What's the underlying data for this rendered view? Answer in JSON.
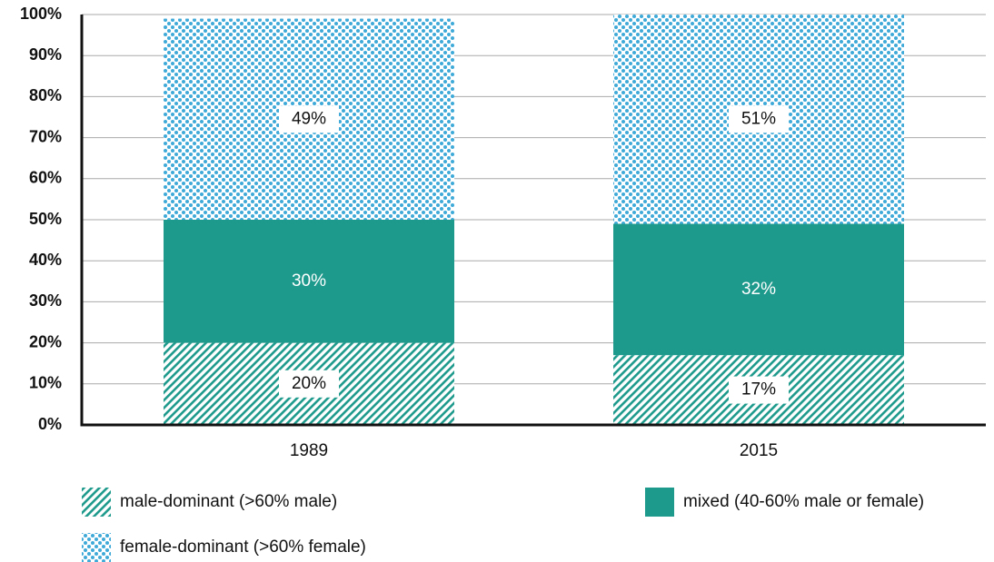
{
  "chart_data": {
    "type": "stacked_bar",
    "categories": [
      "1989",
      "2015"
    ],
    "series": [
      {
        "name": "male-dominant (>60% male)",
        "color": "#1e9a8c",
        "pattern": "hatch",
        "values": [
          20,
          17
        ],
        "value_labels": [
          "20%",
          "17%"
        ]
      },
      {
        "name": "mixed (40-60% male or female)",
        "color": "#1e9a8c",
        "pattern": "solid",
        "values": [
          30,
          32
        ],
        "value_labels": [
          "30%",
          "32%"
        ]
      },
      {
        "name": "female-dominant (>60% female)",
        "color": "#3fa9d8",
        "pattern": "dots",
        "values": [
          49,
          51
        ],
        "value_labels": [
          "49%",
          "51%"
        ]
      }
    ],
    "ylim": [
      0,
      100
    ],
    "yticks": [
      {
        "value": 0,
        "label": "0%"
      },
      {
        "value": 10,
        "label": "10%"
      },
      {
        "value": 20,
        "label": "20%"
      },
      {
        "value": 30,
        "label": "30%"
      },
      {
        "value": 40,
        "label": "40%"
      },
      {
        "value": 50,
        "label": "50%"
      },
      {
        "value": 60,
        "label": "60%"
      },
      {
        "value": 70,
        "label": "70%"
      },
      {
        "value": 80,
        "label": "80%"
      },
      {
        "value": 90,
        "label": "90%"
      },
      {
        "value": 100,
        "label": "100%"
      }
    ],
    "grid": true
  }
}
